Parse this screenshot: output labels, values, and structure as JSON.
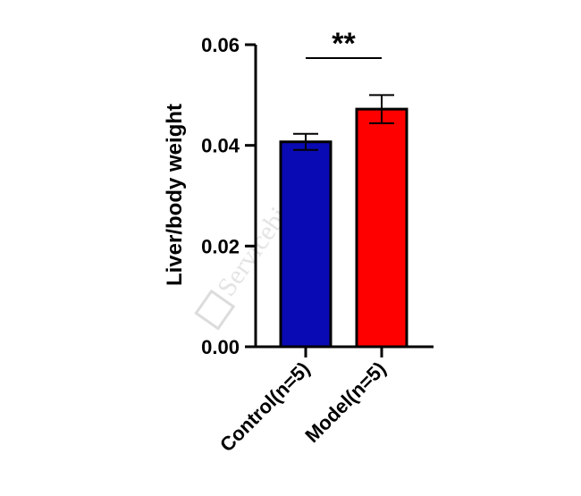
{
  "chart_data": {
    "type": "bar",
    "title": "",
    "xlabel": "",
    "ylabel": "Liver/body weight",
    "ylim": [
      0,
      0.06
    ],
    "yticks": [
      0.0,
      0.02,
      0.04,
      0.06
    ],
    "ytick_labels": [
      "0.00",
      "0.02",
      "0.04",
      "0.06"
    ],
    "categories": [
      "Control(n=5)",
      "Model(n=5)"
    ],
    "values": [
      0.0407,
      0.0472
    ],
    "errors": [
      0.0016,
      0.0028
    ],
    "colors": [
      "#0a0ab4",
      "#ff0000"
    ],
    "significance": {
      "label": "**",
      "between": [
        "Control(n=5)",
        "Model(n=5)"
      ]
    },
    "grid": false,
    "legend": "none"
  },
  "watermark": {
    "text": "Servicebio",
    "color": "#d9d9d9"
  }
}
